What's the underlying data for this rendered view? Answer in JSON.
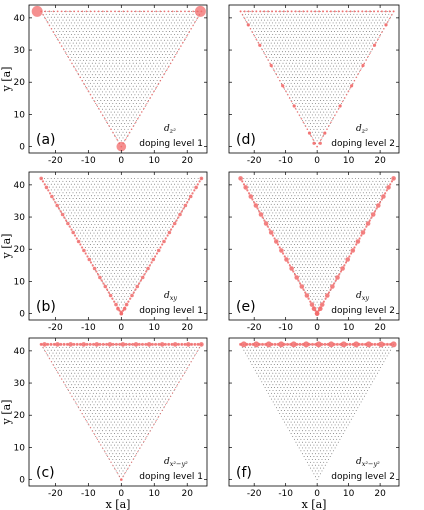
{
  "colors": {
    "lattice": "#555555",
    "highlight": "#f26b6b",
    "frame": "#000000"
  },
  "chart_data": [
    {
      "panel": "(a)",
      "orbital_base": "d",
      "orbital_sub": "z²",
      "doping": "doping level 1",
      "pattern": "corners",
      "type": "scatter",
      "xlim": [
        -28,
        26
      ],
      "ylim": [
        -2,
        44
      ],
      "xticks": [
        "-20",
        "-10",
        "0",
        "10",
        "20"
      ],
      "yticks": [
        "0",
        "10",
        "20",
        "30",
        "40"
      ],
      "xlabel": "",
      "ylabel": "y [a]"
    },
    {
      "panel": "(d)",
      "orbital_base": "d",
      "orbital_sub": "z²",
      "doping": "doping level 2",
      "pattern": "edges-sparse",
      "type": "scatter",
      "xlim": [
        -28,
        26
      ],
      "ylim": [
        -2,
        44
      ],
      "xticks": [
        "-20",
        "-10",
        "0",
        "10",
        "20"
      ],
      "yticks": [],
      "xlabel": "",
      "ylabel": ""
    },
    {
      "panel": "(b)",
      "orbital_base": "d",
      "orbital_sub": "xy",
      "doping": "doping level 1",
      "pattern": "sides",
      "type": "scatter",
      "xlim": [
        -28,
        26
      ],
      "ylim": [
        -2,
        44
      ],
      "xticks": [
        "-20",
        "-10",
        "0",
        "10",
        "20"
      ],
      "yticks": [
        "0",
        "10",
        "20",
        "30",
        "40"
      ],
      "xlabel": "",
      "ylabel": "y [a]"
    },
    {
      "panel": "(e)",
      "orbital_base": "d",
      "orbital_sub": "xy",
      "doping": "doping level 2",
      "pattern": "sides-strong",
      "type": "scatter",
      "xlim": [
        -28,
        26
      ],
      "ylim": [
        -2,
        44
      ],
      "xticks": [
        "-20",
        "-10",
        "0",
        "10",
        "20"
      ],
      "yticks": [],
      "xlabel": "",
      "ylabel": ""
    },
    {
      "panel": "(c)",
      "orbital_base": "d",
      "orbital_sub": "x²−y²",
      "doping": "doping level 1",
      "pattern": "top",
      "type": "scatter",
      "xlim": [
        -28,
        26
      ],
      "ylim": [
        -2,
        44
      ],
      "xticks": [
        "-20",
        "-10",
        "0",
        "10",
        "20"
      ],
      "yticks": [
        "0",
        "10",
        "20",
        "30",
        "40"
      ],
      "xlabel": "x [a]",
      "ylabel": "y [a]"
    },
    {
      "panel": "(f)",
      "orbital_base": "d",
      "orbital_sub": "x²−y²",
      "doping": "doping level 2",
      "pattern": "top-strong",
      "type": "scatter",
      "xlim": [
        -28,
        26
      ],
      "ylim": [
        -2,
        44
      ],
      "xticks": [
        "-20",
        "-10",
        "0",
        "10",
        "20"
      ],
      "yticks": [],
      "xlabel": "x [a]",
      "ylabel": ""
    }
  ]
}
